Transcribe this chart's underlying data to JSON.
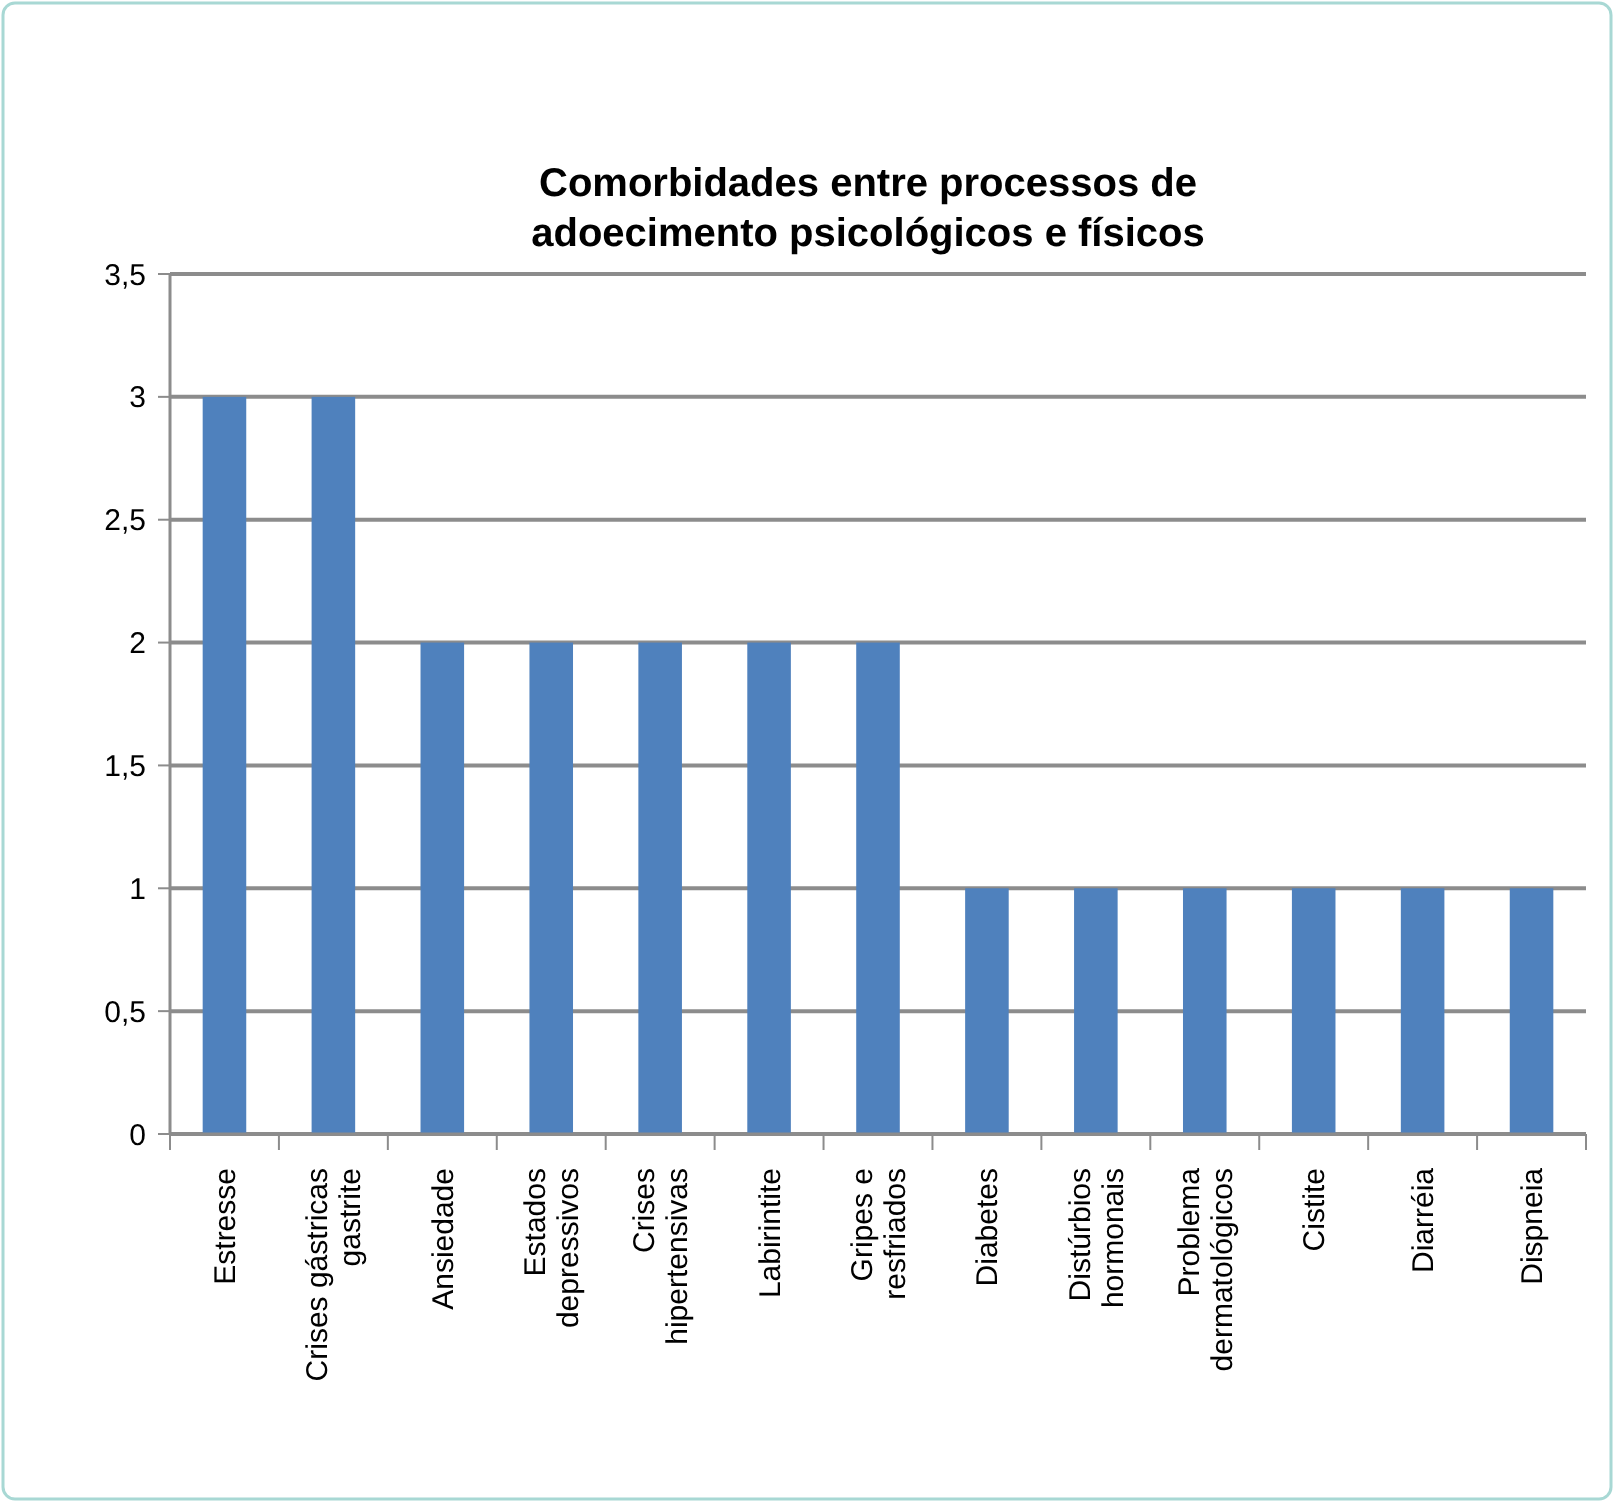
{
  "chart_data": {
    "type": "bar",
    "title": "Comorbidades entre processos de adoecimento psicológicos e físicos",
    "categories": [
      "Estresse",
      "Crises gástricas gastrite",
      "Ansiedade",
      "Estados depressivos",
      "Crises hipertensivas",
      "Labirintite",
      "Gripes e resfriados",
      "Diabetes",
      "Distúrbios hormonais",
      "Problema dermatológicos",
      "Cistite",
      "Diarréia",
      "Dispneia"
    ],
    "values": [
      3,
      3,
      2,
      2,
      2,
      2,
      2,
      1,
      1,
      1,
      1,
      1,
      1
    ],
    "color": "#4f81bd",
    "ylim": [
      0,
      3.5
    ],
    "yticks": [
      0,
      {
        "value": 0.5,
        "label": "0,5"
      },
      1,
      {
        "value": 1.5,
        "label": "1,5"
      },
      2,
      {
        "value": 2.5,
        "label": "2,5"
      },
      3,
      {
        "value": 3.5,
        "label": "3,5"
      }
    ],
    "grid": "y"
  }
}
